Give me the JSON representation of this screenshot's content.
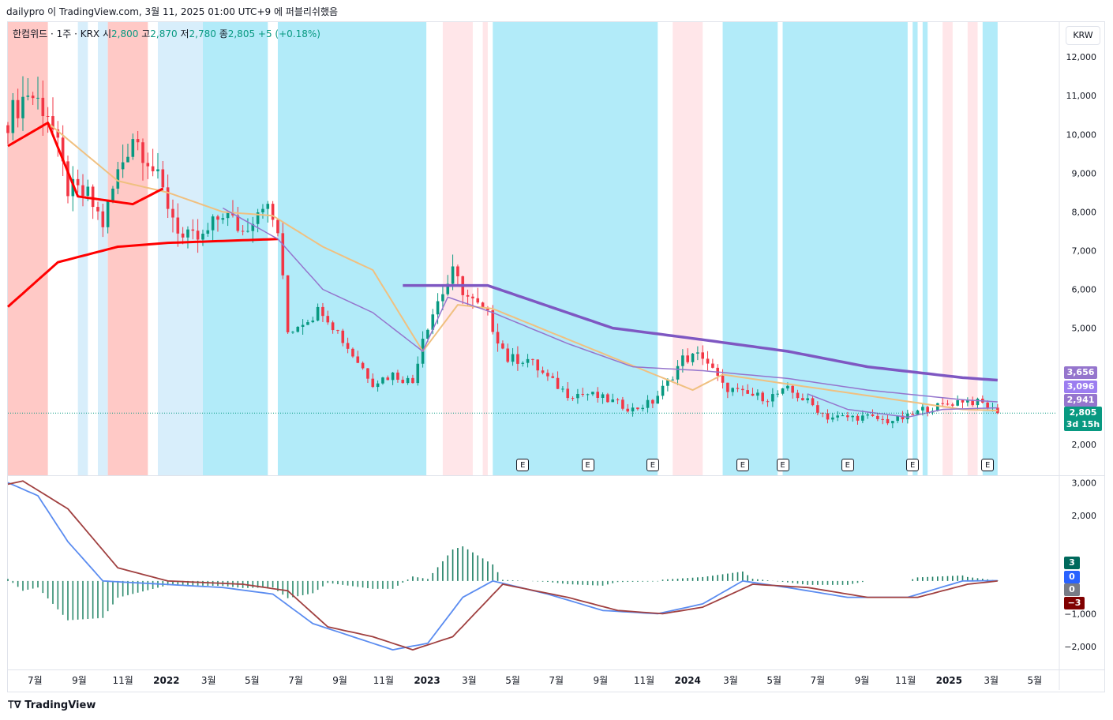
{
  "header": {
    "source_line": "dailypro 이 TradingView.com, 3월 11, 2025 01:00 UTC+9 에 퍼블리쉬했음"
  },
  "legend": {
    "symbol": "한컴위드 · 1주 · KRX",
    "open_label": "시",
    "open": "2,800",
    "high_label": "고",
    "high": "2,870",
    "low_label": "저",
    "low": "2,780",
    "close_label": "종",
    "close": "2,805",
    "change": "+5 (+0.18%)"
  },
  "currency_button": "KRW",
  "price_tags": {
    "ma_long": "3,656",
    "ma_mid": "3,096",
    "ma_short": "2,941",
    "current": "2,805",
    "countdown": "3d 15h"
  },
  "macd_tags": {
    "histogram": "3",
    "zero": "0",
    "gray": "0",
    "negative": "−3"
  },
  "earnings_marker": "E",
  "brand": "TradingView",
  "colors": {
    "up": "#089981",
    "down": "#f23645",
    "ma_long": "#7e57c2",
    "ma_mid": "#9575cd",
    "ma_red": "#ff0000",
    "ma_tan": "#f0c080",
    "cyan_bg": "#b2ebf9",
    "light_blue_bg": "#d8eefb",
    "red_bg": "#ffc9c6",
    "pink_bg": "#ffe6e9",
    "macd": "#5b8cf0",
    "signal": "#a04040"
  },
  "chart_data": {
    "type": "candlestick",
    "title": "",
    "price_axis": {
      "ticks": [
        "12,000",
        "11,000",
        "10,000",
        "9,000",
        "8,000",
        "7,000",
        "6,000",
        "5,000",
        "2,000"
      ],
      "ylim": [
        1200,
        12900
      ]
    },
    "macd_axis": {
      "ticks": [
        "3,000",
        "2,000",
        "−1,000",
        "−2,000"
      ],
      "ylim": [
        -2700,
        3200
      ]
    },
    "x_ticks": [
      "7월",
      "9월",
      "11월",
      "2022",
      "3월",
      "5월",
      "7월",
      "9월",
      "11월",
      "2023",
      "3월",
      "5월",
      "7월",
      "9월",
      "11월",
      "2024",
      "3월",
      "5월",
      "7월",
      "9월",
      "11월",
      "2025",
      "3월",
      "5월"
    ],
    "x_range": [
      "2021-05-24",
      "2025-05-31"
    ],
    "background_bands": [
      {
        "start": "2021-05-24",
        "end": "2021-07-19",
        "kind": "red"
      },
      {
        "start": "2021-08-30",
        "end": "2021-09-13",
        "kind": "light_blue"
      },
      {
        "start": "2021-09-27",
        "end": "2021-10-11",
        "kind": "light_blue"
      },
      {
        "start": "2021-10-11",
        "end": "2021-12-06",
        "kind": "red"
      },
      {
        "start": "2021-12-20",
        "end": "2022-02-21",
        "kind": "light_blue"
      },
      {
        "start": "2022-02-21",
        "end": "2022-05-23",
        "kind": "cyan"
      },
      {
        "start": "2022-06-06",
        "end": "2022-12-31",
        "kind": "cyan"
      },
      {
        "start": "2023-01-23",
        "end": "2023-03-06",
        "kind": "pink"
      },
      {
        "start": "2023-03-20",
        "end": "2023-03-27",
        "kind": "pink"
      },
      {
        "start": "2023-04-03",
        "end": "2023-11-20",
        "kind": "cyan"
      },
      {
        "start": "2023-12-11",
        "end": "2024-01-22",
        "kind": "pink"
      },
      {
        "start": "2024-02-19",
        "end": "2024-05-06",
        "kind": "cyan"
      },
      {
        "start": "2024-05-13",
        "end": "2024-11-04",
        "kind": "cyan"
      },
      {
        "start": "2024-11-11",
        "end": "2024-11-18",
        "kind": "cyan"
      },
      {
        "start": "2024-11-25",
        "end": "2024-12-02",
        "kind": "cyan"
      },
      {
        "start": "2024-12-23",
        "end": "2025-01-06",
        "kind": "pink"
      },
      {
        "start": "2025-01-27",
        "end": "2025-02-10",
        "kind": "pink"
      },
      {
        "start": "2025-02-17",
        "end": "2025-03-10",
        "kind": "cyan"
      }
    ],
    "earnings_dates": [
      "2023-05-15",
      "2023-08-14",
      "2023-11-13",
      "2024-03-18",
      "2024-05-13",
      "2024-08-12",
      "2024-11-11",
      "2025-02-24"
    ],
    "price_anchors": [
      [
        "2021-05-24",
        10400
      ],
      [
        "2021-06-21",
        11100
      ],
      [
        "2021-07-19",
        10600
      ],
      [
        "2021-08-16",
        8600
      ],
      [
        "2021-09-13",
        8400
      ],
      [
        "2021-10-04",
        7700
      ],
      [
        "2021-10-25",
        9000
      ],
      [
        "2021-11-15",
        10000
      ],
      [
        "2021-12-06",
        9400
      ],
      [
        "2022-01-03",
        8200
      ],
      [
        "2022-01-24",
        7300
      ],
      [
        "2022-02-21",
        7300
      ],
      [
        "2022-03-21",
        8000
      ],
      [
        "2022-04-18",
        7500
      ],
      [
        "2022-05-16",
        8300
      ],
      [
        "2022-06-06",
        7500
      ],
      [
        "2022-06-20",
        4900
      ],
      [
        "2022-07-11",
        5200
      ],
      [
        "2022-08-08",
        5500
      ],
      [
        "2022-09-12",
        4500
      ],
      [
        "2022-10-17",
        3600
      ],
      [
        "2022-11-14",
        3800
      ],
      [
        "2022-12-12",
        3600
      ],
      [
        "2022-12-26",
        4800
      ],
      [
        "2023-01-16",
        5700
      ],
      [
        "2023-02-06",
        6400
      ],
      [
        "2023-02-27",
        5800
      ],
      [
        "2023-03-27",
        5300
      ],
      [
        "2023-04-24",
        4200
      ],
      [
        "2023-05-22",
        4200
      ],
      [
        "2023-06-19",
        3700
      ],
      [
        "2023-07-17",
        3300
      ],
      [
        "2023-08-14",
        3300
      ],
      [
        "2023-09-18",
        3100
      ],
      [
        "2023-10-16",
        2900
      ],
      [
        "2023-11-13",
        3100
      ],
      [
        "2023-12-04",
        3600
      ],
      [
        "2023-12-25",
        4200
      ],
      [
        "2024-01-22",
        4300
      ],
      [
        "2024-02-19",
        3500
      ],
      [
        "2024-03-18",
        3300
      ],
      [
        "2024-04-22",
        3200
      ],
      [
        "2024-05-20",
        3400
      ],
      [
        "2024-06-17",
        3100
      ],
      [
        "2024-07-15",
        2700
      ],
      [
        "2024-08-12",
        2700
      ],
      [
        "2024-09-09",
        2700
      ],
      [
        "2024-10-07",
        2600
      ],
      [
        "2024-11-04",
        2700
      ],
      [
        "2024-11-25",
        2900
      ],
      [
        "2024-12-23",
        3000
      ],
      [
        "2025-01-20",
        3150
      ],
      [
        "2025-02-17",
        3050
      ],
      [
        "2025-03-10",
        2805
      ]
    ],
    "ma_long_anchors": [
      [
        "2022-11-28",
        6100
      ],
      [
        "2023-03-27",
        6100
      ],
      [
        "2023-09-18",
        5000
      ],
      [
        "2024-01-22",
        4700
      ],
      [
        "2024-05-20",
        4400
      ],
      [
        "2024-09-09",
        4000
      ],
      [
        "2025-01-20",
        3720
      ],
      [
        "2025-03-10",
        3656
      ]
    ],
    "ma_mid_anchors": [
      [
        "2022-03-21",
        8100
      ],
      [
        "2022-06-06",
        7300
      ],
      [
        "2022-08-08",
        6000
      ],
      [
        "2022-10-17",
        5400
      ],
      [
        "2022-12-26",
        4400
      ],
      [
        "2023-01-30",
        5800
      ],
      [
        "2023-04-03",
        5400
      ],
      [
        "2023-07-17",
        4600
      ],
      [
        "2023-10-16",
        4000
      ],
      [
        "2024-01-22",
        3900
      ],
      [
        "2024-05-20",
        3700
      ],
      [
        "2024-09-09",
        3400
      ],
      [
        "2025-01-20",
        3150
      ],
      [
        "2025-03-10",
        3096
      ]
    ],
    "ma_short_anchors": [
      [
        "2024-06-17",
        3300
      ],
      [
        "2024-08-12",
        2900
      ],
      [
        "2024-11-04",
        2700
      ],
      [
        "2024-12-23",
        2900
      ],
      [
        "2025-03-10",
        2941
      ]
    ],
    "ma_red_anchors": [
      [
        "2021-05-24",
        5550
      ],
      [
        "2021-08-02",
        6700
      ],
      [
        "2021-10-25",
        7100
      ],
      [
        "2022-01-03",
        7200
      ],
      [
        "2022-03-21",
        7250
      ],
      [
        "2022-06-06",
        7300
      ]
    ],
    "ma_red_short_anchors": [
      [
        "2021-05-24",
        9700
      ],
      [
        "2021-07-19",
        10300
      ],
      [
        "2021-08-30",
        8400
      ],
      [
        "2021-11-15",
        8200
      ],
      [
        "2021-12-27",
        8600
      ]
    ],
    "ma_red_mid_anchors": [
      [
        "2023-02-13",
        6100
      ],
      [
        "2023-03-13",
        6100
      ]
    ],
    "ma_tan_anchors": [
      [
        "2021-07-19",
        10300
      ],
      [
        "2021-10-25",
        8800
      ],
      [
        "2022-01-03",
        8500
      ],
      [
        "2022-03-21",
        8000
      ],
      [
        "2022-05-30",
        7900
      ],
      [
        "2022-08-08",
        7100
      ],
      [
        "2022-10-17",
        6500
      ],
      [
        "2022-12-26",
        4400
      ],
      [
        "2023-02-13",
        5600
      ],
      [
        "2023-04-03",
        5500
      ],
      [
        "2024-01-08",
        3400
      ],
      [
        "2024-02-19",
        3800
      ],
      [
        "2025-01-20",
        2900
      ],
      [
        "2025-03-10",
        2870
      ]
    ],
    "macd_anchors": [
      [
        "2021-05-24",
        3000
      ],
      [
        "2021-07-05",
        2600
      ],
      [
        "2021-08-16",
        1200
      ],
      [
        "2021-10-04",
        0
      ],
      [
        "2022-03-21",
        -200
      ],
      [
        "2022-05-30",
        -400
      ],
      [
        "2022-07-25",
        -1300
      ],
      [
        "2022-09-19",
        -1700
      ],
      [
        "2022-11-14",
        -2100
      ],
      [
        "2023-01-02",
        -1900
      ],
      [
        "2023-02-20",
        -500
      ],
      [
        "2023-04-03",
        0
      ],
      [
        "2023-06-19",
        -400
      ],
      [
        "2023-09-04",
        -900
      ],
      [
        "2023-11-20",
        -1000
      ],
      [
        "2024-01-22",
        -700
      ],
      [
        "2024-03-18",
        0
      ],
      [
        "2024-05-20",
        -200
      ],
      [
        "2024-08-12",
        -500
      ],
      [
        "2024-11-04",
        -500
      ],
      [
        "2025-01-20",
        0
      ],
      [
        "2025-03-10",
        10
      ]
    ],
    "signal_anchors": [
      [
        "2021-05-24",
        2950
      ],
      [
        "2021-06-14",
        3050
      ],
      [
        "2021-08-16",
        2200
      ],
      [
        "2021-10-25",
        400
      ],
      [
        "2022-01-03",
        0
      ],
      [
        "2022-04-18",
        -100
      ],
      [
        "2022-06-20",
        -300
      ],
      [
        "2022-08-15",
        -1400
      ],
      [
        "2022-10-17",
        -1700
      ],
      [
        "2022-12-12",
        -2100
      ],
      [
        "2023-02-06",
        -1700
      ],
      [
        "2023-04-17",
        -100
      ],
      [
        "2023-07-17",
        -500
      ],
      [
        "2023-09-25",
        -900
      ],
      [
        "2023-11-27",
        -1000
      ],
      [
        "2024-01-22",
        -800
      ],
      [
        "2024-04-01",
        -100
      ],
      [
        "2024-06-17",
        -200
      ],
      [
        "2024-09-09",
        -500
      ],
      [
        "2024-11-18",
        -500
      ],
      [
        "2025-01-27",
        -100
      ],
      [
        "2025-03-10",
        0
      ]
    ]
  }
}
